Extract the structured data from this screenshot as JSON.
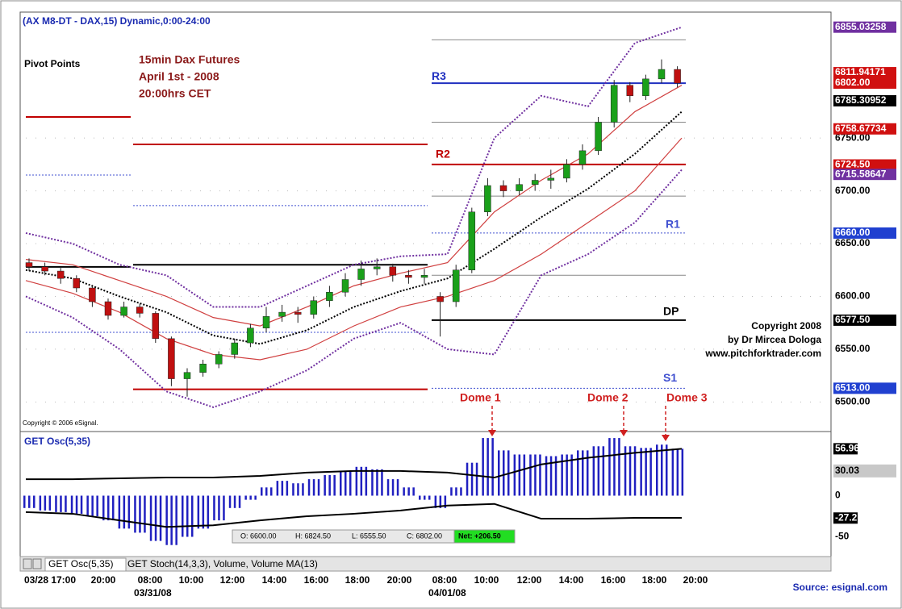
{
  "chart_data": {
    "type": "candlestick",
    "title": "(AX M8-DT - DAX,15) Dynamic,0:00-24:00",
    "annotations": {
      "pivot": "Pivot Points",
      "desc": [
        "15min Dax Futures",
        "April 1st - 2008",
        "20:00hrs CET"
      ],
      "copyright": [
        "Copyright 2008",
        "by Dr Mircea Dologa",
        "www.pitchforktrader.com"
      ],
      "esignal": "Copyright © 2006 eSignal.",
      "domes": [
        "Dome 1",
        "Dome 2",
        "Dome 3"
      ],
      "source": "Source: esignal.com"
    },
    "ylim": [
      6472,
      6867
    ],
    "yticks": [
      {
        "value": 6750,
        "label": "6750.00"
      },
      {
        "value": 6700,
        "label": "6700.00"
      },
      {
        "value": 6650,
        "label": "6650.00"
      },
      {
        "value": 6600,
        "label": "6600.00"
      },
      {
        "value": 6550,
        "label": "6550.00"
      },
      {
        "value": 6500,
        "label": "6500.00"
      }
    ],
    "price_labels": [
      {
        "value": 6855.03258,
        "label": "6855.03258",
        "color": "#7030a0"
      },
      {
        "value": 6811.94171,
        "label": "6811.94171",
        "color": "#d01010"
      },
      {
        "value": 6802,
        "label": "6802.00",
        "color": "#d01010"
      },
      {
        "value": 6785.30952,
        "label": "6785.30952",
        "color": "#000000"
      },
      {
        "value": 6758.67734,
        "label": "6758.67734",
        "color": "#d01010"
      },
      {
        "value": 6724.5,
        "label": "6724.50",
        "color": "#d01010"
      },
      {
        "value": 6715.58647,
        "label": "6715.58647",
        "color": "#7030a0"
      },
      {
        "value": 6660,
        "label": "6660.00",
        "color": "#2040d0"
      },
      {
        "value": 6577.5,
        "label": "6577.50",
        "color": "#000000"
      },
      {
        "value": 6513,
        "label": "6513.00",
        "color": "#2040d0"
      }
    ],
    "ohlc": [
      [
        6632,
        6636,
        6624,
        6628
      ],
      [
        6628,
        6632,
        6620,
        6624
      ],
      [
        6624,
        6627,
        6612,
        6617
      ],
      [
        6617,
        6620,
        6604,
        6608
      ],
      [
        6608,
        6611,
        6590,
        6595
      ],
      [
        6595,
        6598,
        6578,
        6582
      ],
      [
        6582,
        6595,
        6580,
        6590
      ],
      [
        6590,
        6593,
        6580,
        6584
      ],
      [
        6584,
        6586,
        6556,
        6560
      ],
      [
        6560,
        6562,
        6515,
        6522
      ],
      [
        6522,
        6532,
        6505,
        6528
      ],
      [
        6528,
        6540,
        6524,
        6536
      ],
      [
        6536,
        6548,
        6532,
        6545
      ],
      [
        6545,
        6560,
        6541,
        6556
      ],
      [
        6556,
        6574,
        6552,
        6570
      ],
      [
        6570,
        6590,
        6566,
        6581
      ],
      [
        6581,
        6592,
        6576,
        6585
      ],
      [
        6585,
        6590,
        6575,
        6583
      ],
      [
        6583,
        6600,
        6579,
        6596
      ],
      [
        6596,
        6610,
        6590,
        6604
      ],
      [
        6604,
        6622,
        6600,
        6616
      ],
      [
        6616,
        6634,
        6610,
        6626
      ],
      [
        6626,
        6636,
        6620,
        6628
      ],
      [
        6628,
        6631,
        6614,
        6620
      ],
      [
        6620,
        6625,
        6612,
        6618
      ],
      [
        6618,
        6626,
        6612,
        6620
      ],
      [
        6600,
        6604,
        6562,
        6595
      ],
      [
        6595,
        6630,
        6590,
        6625
      ],
      [
        6625,
        6684,
        6622,
        6680
      ],
      [
        6680,
        6712,
        6676,
        6705
      ],
      [
        6705,
        6710,
        6694,
        6700
      ],
      [
        6700,
        6712,
        6696,
        6706
      ],
      [
        6706,
        6716,
        6700,
        6710
      ],
      [
        6710,
        6720,
        6702,
        6712
      ],
      [
        6712,
        6730,
        6708,
        6725
      ],
      [
        6725,
        6744,
        6720,
        6738
      ],
      [
        6738,
        6770,
        6734,
        6765
      ],
      [
        6765,
        6805,
        6760,
        6800
      ],
      [
        6800,
        6803,
        6784,
        6790
      ],
      [
        6790,
        6810,
        6786,
        6806
      ],
      [
        6806,
        6824.5,
        6802,
        6815
      ],
      [
        6815,
        6818,
        6798,
        6802
      ]
    ],
    "bands": [
      {
        "color": "#7030a0",
        "style": "dotted",
        "values": [
          6660,
          6650,
          6630,
          6620,
          6590,
          6590,
          6610,
          6630,
          6638,
          6640,
          6750,
          6790,
          6780,
          6840,
          6855
        ]
      },
      {
        "color": "#7030a0",
        "style": "dotted",
        "values": [
          6600,
          6580,
          6550,
          6510,
          6495,
          6510,
          6530,
          6560,
          6575,
          6550,
          6545,
          6620,
          6640,
          6670,
          6720
        ]
      },
      {
        "color": "#d04040",
        "style": "solid",
        "values": [
          6635,
          6630,
          6615,
          6600,
          6580,
          6572,
          6590,
          6610,
          6622,
          6632,
          6680,
          6710,
          6735,
          6775,
          6800
        ]
      },
      {
        "color": "#d04040",
        "style": "solid",
        "values": [
          6615,
          6603,
          6585,
          6560,
          6545,
          6540,
          6550,
          6572,
          6590,
          6600,
          6615,
          6640,
          6670,
          6700,
          6750
        ]
      },
      {
        "color": "#000000",
        "style": "dotted",
        "values": [
          6625,
          6617,
          6600,
          6585,
          6563,
          6555,
          6568,
          6590,
          6605,
          6617,
          6645,
          6675,
          6702,
          6735,
          6775
        ]
      }
    ],
    "day1_levels": [
      {
        "color": "#c00000",
        "style": "solid",
        "values": [
          6770,
          6744
        ]
      },
      {
        "color": "#4050d0",
        "style": "dotted",
        "values": [
          6715,
          6686
        ]
      },
      {
        "color": "#000000",
        "style": "solid",
        "values": [
          6628,
          6630
        ]
      },
      {
        "color": "#4050d0",
        "style": "dotted",
        "values": [
          6566,
          6566
        ]
      },
      {
        "color": "#c00000",
        "style": "solid",
        "values": [
          null,
          6512
        ]
      }
    ],
    "day2_levels": [
      {
        "name": "R3",
        "value": 6802,
        "color": "#2030c0",
        "style": "solid"
      },
      {
        "name": "R2",
        "value": 6725,
        "color": "#c00000",
        "style": "solid"
      },
      {
        "name": "R1",
        "value": 6660,
        "color": "#4050d0",
        "style": "dotted"
      },
      {
        "name": "DP",
        "value": 6577.5,
        "color": "#000000",
        "style": "solid"
      },
      {
        "name": "S1",
        "value": 6513,
        "color": "#4050d0",
        "style": "dotted"
      }
    ],
    "gray_levels": [
      6843,
      6765,
      6695,
      6620
    ],
    "x_labels": [
      "03/28 17:00",
      "20:00",
      "08:00",
      "10:00",
      "12:00",
      "14:00",
      "16:00",
      "18:00",
      "20:00",
      "08:00",
      "10:00",
      "12:00",
      "14:00",
      "16:00",
      "18:00",
      "20:00"
    ],
    "x_dates": [
      "03/31/08",
      "04/01/08"
    ],
    "quote": [
      "O: 6600.00",
      "H: 6824.50",
      "L: 6555.50",
      "C: 6802.00",
      "Net: +206.50"
    ],
    "tabs": [
      "GET Osc(5,35)",
      "GET Stoch(14,3,3), Volume, Volume MA(13)"
    ],
    "oscillator": {
      "title": "GET Osc(5,35)",
      "ylim": [
        -74,
        73
      ],
      "yticks": [
        56.96,
        30.03,
        0,
        -27.2,
        -50
      ],
      "color": "#2020c0",
      "values": [
        -15,
        -18,
        -20,
        -22,
        -25,
        -30,
        -40,
        -45,
        -55,
        -60,
        -50,
        -40,
        -30,
        -15,
        -5,
        10,
        18,
        15,
        20,
        25,
        30,
        35,
        32,
        20,
        10,
        -5,
        -15,
        10,
        40,
        70,
        55,
        50,
        50,
        48,
        50,
        55,
        60,
        70,
        60,
        58,
        62,
        57
      ],
      "lines": [
        {
          "color": "#000000",
          "values": [
            20,
            20,
            21,
            22,
            22,
            24,
            28,
            30,
            30,
            28,
            22,
            38,
            46,
            52,
            57
          ]
        },
        {
          "color": "#000000",
          "values": [
            -20,
            -22,
            -30,
            -38,
            -36,
            -30,
            -25,
            -22,
            -18,
            -12,
            -10,
            -28,
            -28,
            -27,
            -27
          ]
        }
      ]
    }
  }
}
